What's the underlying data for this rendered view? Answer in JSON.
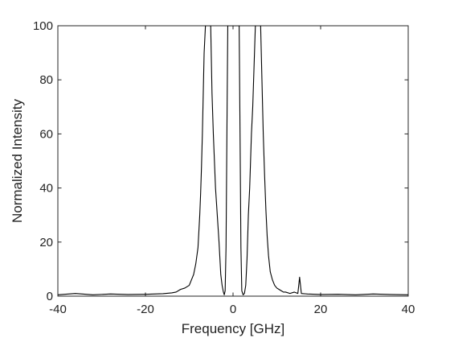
{
  "chart_data": {
    "type": "line",
    "title": "",
    "xlabel": "Frequency [GHz]",
    "ylabel": "Normalized Intensity",
    "xlim": [
      -40,
      40
    ],
    "ylim": [
      0,
      100
    ],
    "xticks": [
      -40,
      -20,
      0,
      20,
      40
    ],
    "yticks": [
      0,
      20,
      40,
      60,
      80,
      100
    ],
    "grid": false,
    "legend": "none",
    "line_color": "#000000",
    "series": [
      {
        "x": [
          -40,
          -36,
          -32,
          -28,
          -24,
          -20,
          -16,
          -14,
          -13,
          -12,
          -11,
          -10,
          -9.5,
          -9,
          -8.5,
          -8,
          -7.8,
          -7.6,
          -7.4,
          -7.2,
          -7,
          -6.8,
          -6.6,
          -6.3,
          -6,
          -5.7,
          -5.4,
          -5.1,
          -4.8,
          -4.5,
          -4.2,
          -4,
          -3.8,
          -3.6,
          -3.4,
          -3.2,
          -3,
          -2.8,
          -2.5,
          -2.2,
          -2,
          -1.8,
          -1.6,
          -1.4,
          -1.2,
          -1,
          -0.8,
          -0.5,
          -0.2,
          0.2,
          0.5,
          0.8,
          1,
          1.2,
          1.4,
          1.6,
          1.8,
          2,
          2.3,
          2.6,
          2.9,
          3.2,
          3.5,
          3.8,
          4,
          4.2,
          4.5,
          4.8,
          5.1,
          5.4,
          5.7,
          6,
          6.3,
          6.6,
          6.9,
          7.2,
          7.5,
          7.8,
          8.1,
          8.5,
          9,
          9.5,
          10,
          10.5,
          11,
          11.5,
          12,
          13,
          14,
          14.8,
          15.2,
          15.6,
          17,
          20,
          24,
          28,
          32,
          36,
          40
        ],
        "y": [
          0.5,
          1,
          0.5,
          0.8,
          0.6,
          0.7,
          0.9,
          1.2,
          1.5,
          2.5,
          3,
          4,
          6,
          8,
          12,
          18,
          24,
          30,
          38,
          48,
          60,
          75,
          90,
          100,
          100,
          100,
          100,
          100,
          75,
          60,
          48,
          40,
          35,
          30,
          25,
          20,
          14,
          8,
          4,
          1.5,
          0.5,
          2,
          18,
          60,
          100,
          100,
          100,
          100,
          100,
          100,
          100,
          100,
          100,
          100,
          100,
          60,
          18,
          2,
          0.5,
          1,
          4,
          14,
          30,
          40,
          50,
          60,
          70,
          85,
          100,
          100,
          100,
          100,
          100,
          80,
          60,
          45,
          32,
          22,
          15,
          9,
          6,
          4,
          3,
          2.5,
          2,
          1.5,
          1.5,
          1,
          1.5,
          1,
          7,
          1,
          0.8,
          0.6,
          0.7,
          0.5,
          0.8,
          0.6,
          0.5
        ]
      }
    ]
  }
}
